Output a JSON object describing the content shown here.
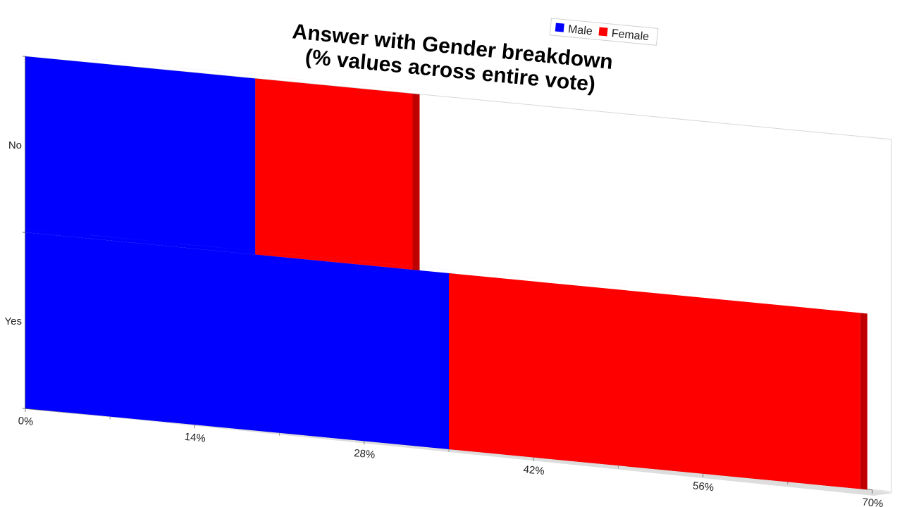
{
  "chart_data": {
    "type": "bar",
    "orientation": "horizontal",
    "stacked": true,
    "three_d": true,
    "title": [
      "Answer with Gender breakdown",
      "(% values across entire vote)"
    ],
    "categories": [
      "No",
      "Yes"
    ],
    "series": [
      {
        "name": "Male",
        "color": "#0000ff",
        "values": [
          19,
          35
        ]
      },
      {
        "name": "Female",
        "color": "#ff0000",
        "values": [
          13,
          34
        ]
      }
    ],
    "xlim": [
      0,
      70
    ],
    "x_ticks": [
      0,
      14,
      28,
      42,
      56,
      70
    ],
    "x_tick_labels": [
      "0%",
      "14%",
      "28%",
      "42%",
      "56%",
      "70%"
    ],
    "legend_position": "top-right",
    "grid": false
  }
}
